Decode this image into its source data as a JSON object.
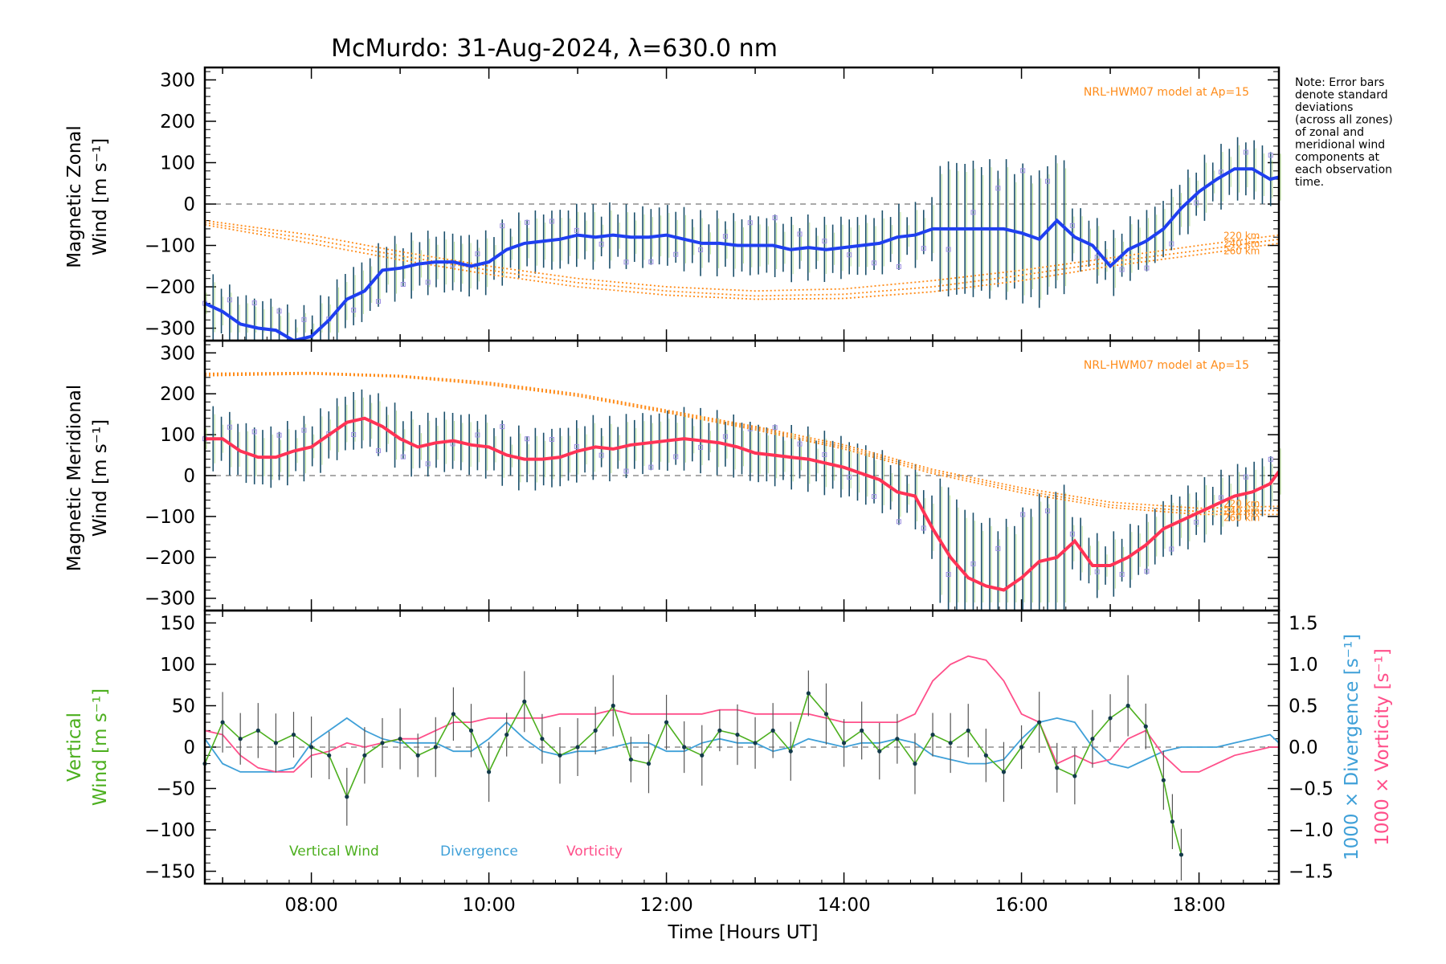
{
  "title": "McMurdo: 31-Aug-2024, λ=630.0 nm",
  "note_lines": [
    "Note: Error bars",
    "denote standard",
    "deviations",
    "(across all zones)",
    "of zonal and",
    "meridional wind",
    "components at",
    "each observation",
    "time."
  ],
  "x_axis": {
    "label": "Time [Hours UT]",
    "range_hours": [
      6.8,
      18.9
    ],
    "tick_labels": [
      "08:00",
      "10:00",
      "12:00",
      "14:00",
      "16:00",
      "18:00"
    ]
  },
  "colors": {
    "zonal": "#1f3ff0",
    "meridional": "#ff3355",
    "model": "#ff8c1a",
    "vertical": "#4caf1e",
    "divergence": "#3fa0d8",
    "vorticity": "#ff4f8a",
    "errorbar": "#1b4f6b",
    "zone_marker": "#9b8fe0"
  },
  "panels": {
    "zonal": {
      "ylabel_line1": "Magnetic Zonal",
      "ylabel_line2": "Wind [m s⁻¹]",
      "ytick_labels": [
        "300",
        "200",
        "100",
        "0",
        "−100",
        "−200",
        "−300"
      ],
      "model_label": "NRL-HWM07 model at Ap=15",
      "altitude_labels": [
        "220 km",
        "240 km",
        "260 km"
      ]
    },
    "meridional": {
      "ylabel_line1": "Magnetic Meridional",
      "ylabel_line2": "Wind [m s⁻¹]",
      "ytick_labels": [
        "300",
        "200",
        "100",
        "0",
        "−100",
        "−200",
        "−300"
      ],
      "model_label": "NRL-HWM07 model at Ap=15",
      "altitude_labels": [
        "220 km",
        "240 km",
        "260 km"
      ]
    },
    "vertical": {
      "ylabel_line1": "Vertical",
      "ylabel_line2": "Wind [m s⁻¹]",
      "ytick_labels": [
        "150",
        "100",
        "50",
        "0",
        "−50",
        "−100",
        "−150"
      ],
      "right_label_divergence": "1000 × Divergence [s⁻¹]",
      "right_label_vorticity": "1000 × Vorticity [s⁻¹]",
      "right_tick_labels": [
        "1.5",
        "1.0",
        "0.5",
        "0.0",
        "−0.5",
        "−1.0",
        "−1.5"
      ],
      "legend": [
        "Vertical Wind",
        "Divergence",
        "Vorticity"
      ]
    }
  },
  "chart_data": [
    {
      "type": "line",
      "title": "McMurdo: 31-Aug-2024, λ=630.0 nm",
      "xlabel": "",
      "ylabel": "Magnetic Zonal Wind [m s⁻¹]",
      "xlim": [
        6.8,
        18.9
      ],
      "ylim": [
        -330,
        330
      ],
      "series": [
        {
          "x": [
            6.8,
            7.0,
            7.2,
            7.4,
            7.6,
            7.8,
            8.0,
            8.2,
            8.4,
            8.6,
            8.8,
            9.0,
            9.2,
            9.4,
            9.6,
            9.8,
            10.0,
            10.2,
            10.4,
            10.6,
            10.8,
            11.0,
            11.2,
            11.4,
            11.6,
            11.8,
            12.0,
            12.2,
            12.4,
            12.6,
            12.8,
            13.0,
            13.2,
            13.4,
            13.6,
            13.8,
            14.0,
            14.2,
            14.4,
            14.6,
            14.8,
            15.0,
            15.2,
            15.4,
            15.6,
            15.8,
            16.0,
            16.2,
            16.4,
            16.6,
            16.8,
            17.0,
            17.2,
            17.4,
            17.6,
            17.8,
            18.0,
            18.2,
            18.4,
            18.6,
            18.8,
            18.9
          ],
          "values": [
            -240,
            -260,
            -290,
            -300,
            -305,
            -330,
            -320,
            -280,
            -230,
            -210,
            -160,
            -155,
            -145,
            -140,
            -140,
            -150,
            -140,
            -110,
            -95,
            -90,
            -85,
            -75,
            -80,
            -75,
            -80,
            -80,
            -75,
            -85,
            -95,
            -95,
            -100,
            -100,
            -100,
            -110,
            -105,
            -110,
            -105,
            -100,
            -95,
            -80,
            -75,
            -60,
            -60,
            -60,
            -60,
            -60,
            -70,
            -85,
            -40,
            -80,
            -100,
            -150,
            -110,
            -90,
            -60,
            -10,
            30,
            60,
            85,
            85,
            60,
            65
          ]
        },
        {
          "name": "220 km",
          "x": [
            6.8,
            8.0,
            9.0,
            10.0,
            11.0,
            12.0,
            13.0,
            14.0,
            15.0,
            16.0,
            17.0,
            18.0,
            18.9
          ],
          "values": [
            -40,
            -75,
            -115,
            -150,
            -180,
            -200,
            -210,
            -205,
            -185,
            -160,
            -130,
            -100,
            -75
          ]
        },
        {
          "name": "240 km",
          "x": [
            6.8,
            8.0,
            9.0,
            10.0,
            11.0,
            12.0,
            13.0,
            14.0,
            15.0,
            16.0,
            17.0,
            18.0,
            18.9
          ],
          "values": [
            -45,
            -85,
            -125,
            -160,
            -190,
            -210,
            -222,
            -218,
            -200,
            -172,
            -140,
            -112,
            -85
          ]
        },
        {
          "name": "260 km",
          "x": [
            6.8,
            8.0,
            9.0,
            10.0,
            11.0,
            12.0,
            13.0,
            14.0,
            15.0,
            16.0,
            17.0,
            18.0,
            18.9
          ],
          "values": [
            -50,
            -95,
            -135,
            -170,
            -200,
            -220,
            -230,
            -228,
            -212,
            -185,
            -150,
            -122,
            -95
          ]
        }
      ]
    },
    {
      "type": "line",
      "xlabel": "",
      "ylabel": "Magnetic Meridional Wind [m s⁻¹]",
      "xlim": [
        6.8,
        18.9
      ],
      "ylim": [
        -330,
        330
      ],
      "series": [
        {
          "x": [
            6.8,
            7.0,
            7.2,
            7.4,
            7.6,
            7.8,
            8.0,
            8.2,
            8.4,
            8.6,
            8.8,
            9.0,
            9.2,
            9.4,
            9.6,
            9.8,
            10.0,
            10.2,
            10.4,
            10.6,
            10.8,
            11.0,
            11.2,
            11.4,
            11.6,
            11.8,
            12.0,
            12.2,
            12.4,
            12.6,
            12.8,
            13.0,
            13.2,
            13.4,
            13.6,
            13.8,
            14.0,
            14.2,
            14.4,
            14.6,
            14.8,
            15.0,
            15.2,
            15.4,
            15.6,
            15.8,
            16.0,
            16.2,
            16.4,
            16.6,
            16.8,
            17.0,
            17.2,
            17.4,
            17.6,
            17.8,
            18.0,
            18.2,
            18.4,
            18.6,
            18.8,
            18.9
          ],
          "values": [
            90,
            90,
            60,
            45,
            45,
            60,
            70,
            100,
            130,
            140,
            120,
            90,
            70,
            80,
            85,
            75,
            70,
            50,
            40,
            40,
            45,
            60,
            70,
            65,
            75,
            80,
            85,
            90,
            85,
            80,
            70,
            55,
            50,
            45,
            40,
            30,
            20,
            5,
            -10,
            -40,
            -50,
            -130,
            -200,
            -250,
            -270,
            -280,
            -250,
            -210,
            -200,
            -160,
            -220,
            -220,
            -200,
            -170,
            -130,
            -110,
            -90,
            -70,
            -50,
            -40,
            -20,
            10
          ]
        },
        {
          "name": "220 km",
          "x": [
            6.8,
            8.0,
            9.0,
            10.0,
            11.0,
            12.0,
            13.0,
            14.0,
            15.0,
            16.0,
            17.0,
            18.0,
            18.9
          ],
          "values": [
            250,
            252,
            245,
            228,
            200,
            160,
            120,
            75,
            15,
            -30,
            -65,
            -80,
            -75
          ]
        },
        {
          "name": "240 km",
          "x": [
            6.8,
            8.0,
            9.0,
            10.0,
            11.0,
            12.0,
            13.0,
            14.0,
            15.0,
            16.0,
            17.0,
            18.0,
            18.9
          ],
          "values": [
            247,
            250,
            243,
            225,
            197,
            157,
            116,
            70,
            10,
            -36,
            -72,
            -88,
            -85
          ]
        },
        {
          "name": "260 km",
          "x": [
            6.8,
            8.0,
            9.0,
            10.0,
            11.0,
            12.0,
            13.0,
            14.0,
            15.0,
            16.0,
            17.0,
            18.0,
            18.9
          ],
          "values": [
            244,
            248,
            241,
            222,
            194,
            154,
            112,
            65,
            5,
            -42,
            -78,
            -95,
            -95
          ]
        }
      ]
    },
    {
      "type": "line",
      "xlabel": "Time [Hours UT]",
      "ylabel": "Vertical Wind [m s⁻¹]",
      "xlim": [
        6.8,
        18.9
      ],
      "ylim": [
        -165,
        165
      ],
      "y2label": "1000 × Divergence / Vorticity [s⁻¹]",
      "y2lim": [
        -1.65,
        1.65
      ],
      "series": [
        {
          "name": "Vertical Wind",
          "x": [
            6.8,
            7.0,
            7.2,
            7.4,
            7.6,
            7.8,
            8.0,
            8.2,
            8.4,
            8.6,
            8.8,
            9.0,
            9.2,
            9.4,
            9.6,
            9.8,
            10.0,
            10.2,
            10.4,
            10.6,
            10.8,
            11.0,
            11.2,
            11.4,
            11.6,
            11.8,
            12.0,
            12.2,
            12.4,
            12.6,
            12.8,
            13.0,
            13.2,
            13.4,
            13.6,
            13.8,
            14.0,
            14.2,
            14.4,
            14.6,
            14.8,
            15.0,
            15.2,
            15.4,
            15.6,
            15.8,
            16.0,
            16.2,
            16.4,
            16.6,
            16.8,
            17.0,
            17.2,
            17.4,
            17.6,
            17.7,
            17.8
          ],
          "values": [
            -20,
            30,
            10,
            20,
            5,
            15,
            0,
            -10,
            -60,
            -10,
            5,
            10,
            -10,
            0,
            40,
            20,
            -30,
            15,
            55,
            10,
            -10,
            0,
            20,
            50,
            -15,
            -20,
            30,
            0,
            -10,
            20,
            15,
            5,
            20,
            -5,
            65,
            40,
            5,
            20,
            -5,
            10,
            -20,
            15,
            5,
            20,
            -10,
            -30,
            0,
            30,
            -25,
            -35,
            10,
            35,
            50,
            25,
            -40,
            -90,
            -130
          ]
        },
        {
          "name": "Divergence",
          "x": [
            6.8,
            7.0,
            7.2,
            7.4,
            7.6,
            7.8,
            8.0,
            8.2,
            8.4,
            8.6,
            8.8,
            9.0,
            9.2,
            9.4,
            9.6,
            9.8,
            10.0,
            10.2,
            10.4,
            10.6,
            10.8,
            11.0,
            11.2,
            11.4,
            11.6,
            11.8,
            12.0,
            12.2,
            12.4,
            12.6,
            12.8,
            13.0,
            13.2,
            13.4,
            13.6,
            13.8,
            14.0,
            14.2,
            14.4,
            14.6,
            14.8,
            15.0,
            15.2,
            15.4,
            15.6,
            15.8,
            16.0,
            16.2,
            16.4,
            16.6,
            16.8,
            17.0,
            17.2,
            17.4,
            17.6,
            17.8,
            18.0,
            18.2,
            18.4,
            18.6,
            18.8,
            18.9
          ],
          "values": [
            0.1,
            -0.2,
            -0.3,
            -0.3,
            -0.3,
            -0.25,
            0.05,
            0.2,
            0.35,
            0.2,
            0.1,
            0.05,
            0.05,
            0.05,
            -0.05,
            -0.05,
            0.1,
            0.3,
            0.1,
            -0.05,
            -0.1,
            -0.05,
            -0.05,
            0.0,
            0.05,
            0.05,
            -0.05,
            -0.05,
            0.05,
            0.1,
            0.05,
            0.05,
            -0.05,
            0.0,
            0.1,
            0.05,
            0.0,
            0.05,
            0.05,
            0.1,
            0.05,
            -0.1,
            -0.15,
            -0.2,
            -0.2,
            -0.15,
            0.1,
            0.3,
            0.35,
            0.3,
            0.0,
            -0.2,
            -0.25,
            -0.15,
            -0.05,
            0.0,
            0.0,
            0.0,
            0.05,
            0.1,
            0.15,
            0.05
          ]
        },
        {
          "name": "Vorticity",
          "x": [
            6.8,
            7.0,
            7.2,
            7.4,
            7.6,
            7.8,
            8.0,
            8.2,
            8.4,
            8.6,
            8.8,
            9.0,
            9.2,
            9.4,
            9.6,
            9.8,
            10.0,
            10.2,
            10.4,
            10.6,
            10.8,
            11.0,
            11.2,
            11.4,
            11.6,
            11.8,
            12.0,
            12.2,
            12.4,
            12.6,
            12.8,
            13.0,
            13.2,
            13.4,
            13.6,
            13.8,
            14.0,
            14.2,
            14.4,
            14.6,
            14.8,
            15.0,
            15.2,
            15.4,
            15.6,
            15.8,
            16.0,
            16.2,
            16.4,
            16.6,
            16.8,
            17.0,
            17.2,
            17.4,
            17.6,
            17.8,
            18.0,
            18.2,
            18.4,
            18.6,
            18.8,
            18.9
          ],
          "values": [
            0.2,
            0.15,
            -0.1,
            -0.25,
            -0.3,
            -0.3,
            -0.1,
            -0.05,
            0.05,
            0.0,
            0.05,
            0.1,
            0.1,
            0.2,
            0.3,
            0.3,
            0.35,
            0.35,
            0.35,
            0.35,
            0.4,
            0.4,
            0.4,
            0.45,
            0.4,
            0.4,
            0.4,
            0.4,
            0.4,
            0.45,
            0.45,
            0.4,
            0.4,
            0.4,
            0.4,
            0.35,
            0.3,
            0.3,
            0.3,
            0.3,
            0.4,
            0.8,
            1.0,
            1.1,
            1.05,
            0.8,
            0.4,
            0.3,
            -0.2,
            -0.1,
            -0.2,
            -0.15,
            0.1,
            0.2,
            -0.1,
            -0.3,
            -0.3,
            -0.2,
            -0.1,
            -0.05,
            0.0,
            0.0
          ]
        }
      ]
    }
  ]
}
